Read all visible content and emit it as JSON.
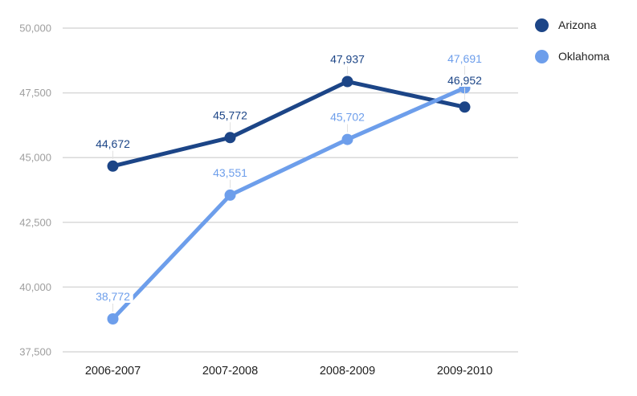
{
  "chart_data": {
    "type": "line",
    "title": "",
    "categories": [
      "2006-2007",
      "2007-2008",
      "2008-2009",
      "2009-2010"
    ],
    "series": [
      {
        "name": "Arizona",
        "color": "#1c4587",
        "values": [
          44672,
          45772,
          47937,
          46952
        ],
        "value_labels": [
          "44,672",
          "45,772",
          "47,937",
          "46,952"
        ]
      },
      {
        "name": "Oklahoma",
        "color": "#6d9eeb",
        "values": [
          38772,
          43551,
          45702,
          47691
        ],
        "value_labels": [
          "38,772",
          "43,551",
          "45,702",
          "47,691"
        ]
      }
    ],
    "ylim": [
      37500,
      50000
    ],
    "y_ticks": [
      {
        "value": 37500,
        "label": "37,500"
      },
      {
        "value": 40000,
        "label": "40,000"
      },
      {
        "value": 42500,
        "label": "42,500"
      },
      {
        "value": 45000,
        "label": "45,000"
      },
      {
        "value": 47500,
        "label": "47,500"
      },
      {
        "value": 50000,
        "label": "50,000"
      }
    ],
    "xlabel": "",
    "ylabel": "",
    "grid": true,
    "legend_position": "right",
    "style": {
      "background": "#ffffff",
      "gridline_color": "#d9d9d9",
      "y_tick_color": "#9e9e9e",
      "x_tick_color": "#1f1f1f",
      "legend_text_color": "#222222",
      "callout_color": "#e0e0e0",
      "label_background": "#ffffff"
    }
  }
}
